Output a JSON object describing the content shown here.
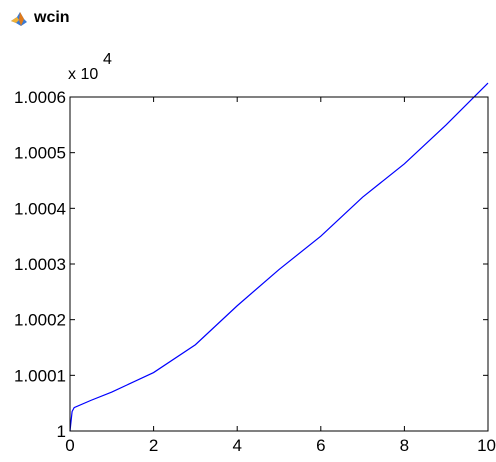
{
  "window": {
    "title": "wcin",
    "icon": "matlab-figure-icon"
  },
  "colors": {
    "line": "#0000ff",
    "axes": "#000000",
    "background": "#ffffff"
  },
  "chart_data": {
    "type": "line",
    "title": "",
    "xlabel": "",
    "ylabel": "",
    "y_multiplier": {
      "base": "x 10",
      "exponent": "4"
    },
    "xlim": [
      0,
      10
    ],
    "ylim": [
      1,
      1.0006
    ],
    "grid": false,
    "x_ticks": [
      0,
      2,
      4,
      6,
      8,
      10
    ],
    "x_tick_labels": [
      "0",
      "2",
      "4",
      "6",
      "8",
      "10"
    ],
    "y_ticks": [
      1,
      1.0001,
      1.0002,
      1.0003,
      1.0004,
      1.0005,
      1.0006
    ],
    "y_tick_labels": [
      "1",
      "1.0001",
      "1.0002",
      "1.0003",
      "1.0004",
      "1.0005",
      "1.0006"
    ],
    "series": [
      {
        "color": "#0000ff",
        "x": [
          0,
          0.05,
          0.1,
          0.5,
          1,
          2,
          3,
          4,
          5,
          6,
          7,
          8,
          9,
          10
        ],
        "y": [
          1.0,
          1.000035,
          1.000042,
          1.000055,
          1.00007,
          1.000105,
          1.000155,
          1.000225,
          1.00029,
          1.00035,
          1.00042,
          1.00048,
          1.00055,
          1.000625
        ]
      }
    ]
  }
}
